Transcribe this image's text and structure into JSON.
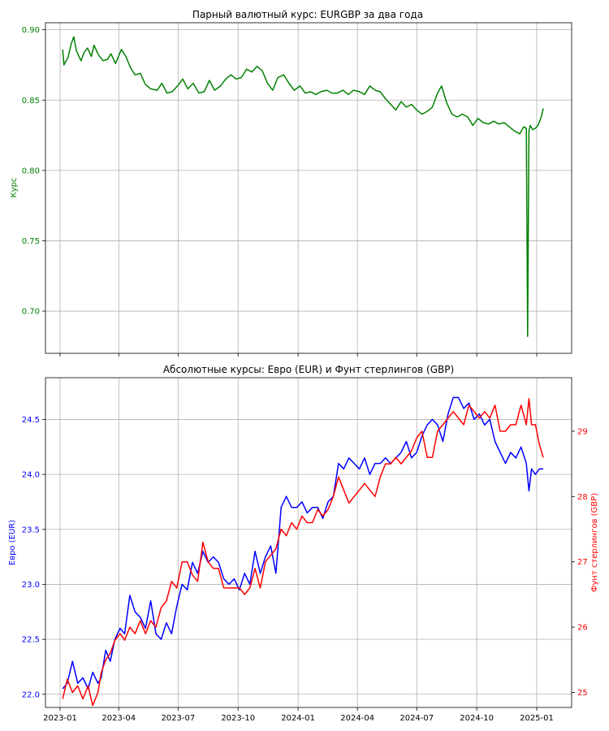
{
  "chart_data": [
    {
      "type": "line",
      "title": "Парный валютный курс: EURGBP за два года",
      "xlabel": "",
      "ylabel": "Курс",
      "ylim": [
        0.67,
        0.905
      ],
      "yticks": [
        "0.70",
        "0.75",
        "0.80",
        "0.85",
        "0.90"
      ],
      "grid": true,
      "colors": {
        "series": "#008000",
        "label": "#008000"
      },
      "series": [
        {
          "color": "#008000",
          "x": [
            "2023-01-05",
            "2023-01-07",
            "2023-01-09",
            "2023-01-13",
            "2023-01-18",
            "2023-01-22",
            "2023-01-26",
            "2023-02-02",
            "2023-02-07",
            "2023-02-12",
            "2023-02-18",
            "2023-02-22",
            "2023-03-01",
            "2023-03-08",
            "2023-03-15",
            "2023-03-20",
            "2023-03-27",
            "2023-04-05",
            "2023-04-12",
            "2023-04-19",
            "2023-04-26",
            "2023-05-04",
            "2023-05-12",
            "2023-05-20",
            "2023-05-30",
            "2023-06-06",
            "2023-06-14",
            "2023-06-22",
            "2023-06-30",
            "2023-07-08",
            "2023-07-16",
            "2023-07-24",
            "2023-08-02",
            "2023-08-10",
            "2023-08-18",
            "2023-08-26",
            "2023-09-04",
            "2023-09-12",
            "2023-09-20",
            "2023-09-28",
            "2023-10-06",
            "2023-10-14",
            "2023-10-22",
            "2023-10-30",
            "2023-11-07",
            "2023-11-15",
            "2023-11-23",
            "2023-12-01",
            "2023-12-10",
            "2023-12-18",
            "2023-12-26",
            "2024-01-04",
            "2024-01-12",
            "2024-01-20",
            "2024-01-28",
            "2024-02-05",
            "2024-02-14",
            "2024-02-22",
            "2024-03-01",
            "2024-03-10",
            "2024-03-18",
            "2024-03-26",
            "2024-04-04",
            "2024-04-12",
            "2024-04-20",
            "2024-04-28",
            "2024-05-06",
            "2024-05-14",
            "2024-05-22",
            "2024-05-30",
            "2024-06-07",
            "2024-06-15",
            "2024-06-23",
            "2024-07-01",
            "2024-07-09",
            "2024-07-17",
            "2024-07-25",
            "2024-08-02",
            "2024-08-08",
            "2024-08-16",
            "2024-08-24",
            "2024-09-01",
            "2024-09-09",
            "2024-09-17",
            "2024-09-25",
            "2024-10-03",
            "2024-10-11",
            "2024-10-19",
            "2024-10-27",
            "2024-11-04",
            "2024-11-12",
            "2024-11-20",
            "2024-11-28",
            "2024-12-06",
            "2024-12-12",
            "2024-12-16",
            "2024-12-18",
            "2024-12-20",
            "2024-12-22",
            "2024-12-26",
            "2024-12-30",
            "2025-01-03",
            "2025-01-08",
            "2025-01-11"
          ],
          "y": [
            0.886,
            0.875,
            0.877,
            0.88,
            0.89,
            0.895,
            0.885,
            0.878,
            0.884,
            0.887,
            0.881,
            0.889,
            0.882,
            0.878,
            0.879,
            0.883,
            0.876,
            0.886,
            0.881,
            0.873,
            0.868,
            0.869,
            0.861,
            0.858,
            0.857,
            0.862,
            0.855,
            0.856,
            0.86,
            0.865,
            0.858,
            0.862,
            0.855,
            0.856,
            0.864,
            0.857,
            0.86,
            0.865,
            0.868,
            0.865,
            0.866,
            0.872,
            0.87,
            0.874,
            0.871,
            0.862,
            0.857,
            0.866,
            0.868,
            0.862,
            0.857,
            0.86,
            0.855,
            0.856,
            0.854,
            0.856,
            0.857,
            0.855,
            0.855,
            0.857,
            0.854,
            0.857,
            0.856,
            0.854,
            0.86,
            0.857,
            0.856,
            0.851,
            0.847,
            0.843,
            0.849,
            0.845,
            0.847,
            0.843,
            0.84,
            0.842,
            0.845,
            0.855,
            0.86,
            0.848,
            0.84,
            0.838,
            0.84,
            0.838,
            0.832,
            0.837,
            0.834,
            0.833,
            0.835,
            0.833,
            0.834,
            0.831,
            0.828,
            0.826,
            0.831,
            0.83,
            0.682,
            0.828,
            0.832,
            0.829,
            0.83,
            0.832,
            0.838,
            0.844
          ]
        }
      ]
    },
    {
      "type": "line",
      "title": "Абсолютные курсы: Евро (EUR) и Фунт стерлингов (GBP)",
      "xlabel": "",
      "ylabel": "Евро (EUR)",
      "ylabel_right": "Фунт стерлингов (GBP)",
      "ylim": [
        21.88,
        24.88
      ],
      "ylim_right": [
        24.77,
        29.82
      ],
      "yticks": [
        "22.0",
        "22.5",
        "23.0",
        "23.5",
        "24.0",
        "24.5"
      ],
      "yticks_right": [
        "25",
        "26",
        "27",
        "28",
        "29"
      ],
      "xticks": [
        "2023-01",
        "2023-04",
        "2023-07",
        "2023-10",
        "2024-01",
        "2024-04",
        "2024-07",
        "2024-10",
        "2025-01"
      ],
      "grid": true,
      "colors": {
        "eur": "#0000ff",
        "gbp": "#ff0000"
      },
      "series": [
        {
          "color": "#0000ff",
          "axis": "left",
          "x": [
            "2023-01-05",
            "2023-01-12",
            "2023-01-20",
            "2023-01-28",
            "2023-02-05",
            "2023-02-13",
            "2023-02-20",
            "2023-02-28",
            "2023-03-05",
            "2023-03-12",
            "2023-03-19",
            "2023-03-26",
            "2023-04-03",
            "2023-04-10",
            "2023-04-18",
            "2023-04-26",
            "2023-05-04",
            "2023-05-12",
            "2023-05-20",
            "2023-05-28",
            "2023-06-05",
            "2023-06-13",
            "2023-06-21",
            "2023-06-29",
            "2023-07-07",
            "2023-07-15",
            "2023-07-23",
            "2023-07-31",
            "2023-08-08",
            "2023-08-16",
            "2023-08-24",
            "2023-09-01",
            "2023-09-09",
            "2023-09-17",
            "2023-09-25",
            "2023-10-03",
            "2023-10-11",
            "2023-10-19",
            "2023-10-27",
            "2023-11-04",
            "2023-11-12",
            "2023-11-20",
            "2023-11-28",
            "2023-12-06",
            "2023-12-14",
            "2023-12-22",
            "2023-12-30",
            "2024-01-07",
            "2024-01-15",
            "2024-01-23",
            "2024-01-31",
            "2024-02-08",
            "2024-02-16",
            "2024-02-24",
            "2024-03-03",
            "2024-03-11",
            "2024-03-19",
            "2024-03-27",
            "2024-04-04",
            "2024-04-12",
            "2024-04-20",
            "2024-04-28",
            "2024-05-06",
            "2024-05-14",
            "2024-05-22",
            "2024-05-30",
            "2024-06-07",
            "2024-06-15",
            "2024-06-23",
            "2024-07-01",
            "2024-07-09",
            "2024-07-17",
            "2024-07-25",
            "2024-08-02",
            "2024-08-10",
            "2024-08-18",
            "2024-08-26",
            "2024-09-03",
            "2024-09-11",
            "2024-09-19",
            "2024-09-27",
            "2024-10-05",
            "2024-10-13",
            "2024-10-21",
            "2024-10-29",
            "2024-11-06",
            "2024-11-14",
            "2024-11-22",
            "2024-11-30",
            "2024-12-08",
            "2024-12-16",
            "2024-12-20",
            "2024-12-24",
            "2024-12-30",
            "2025-01-05",
            "2025-01-11"
          ],
          "y": [
            22.05,
            22.1,
            22.3,
            22.1,
            22.15,
            22.05,
            22.2,
            22.1,
            22.15,
            22.4,
            22.3,
            22.5,
            22.6,
            22.55,
            22.9,
            22.75,
            22.7,
            22.6,
            22.85,
            22.55,
            22.5,
            22.65,
            22.55,
            22.8,
            23.0,
            22.95,
            23.2,
            23.1,
            23.3,
            23.2,
            23.25,
            23.2,
            23.05,
            23.0,
            23.05,
            22.95,
            23.1,
            23.0,
            23.3,
            23.1,
            23.25,
            23.35,
            23.1,
            23.7,
            23.8,
            23.7,
            23.7,
            23.75,
            23.65,
            23.7,
            23.7,
            23.6,
            23.75,
            23.8,
            24.1,
            24.05,
            24.15,
            24.1,
            24.05,
            24.15,
            24.0,
            24.1,
            24.1,
            24.15,
            24.1,
            24.15,
            24.2,
            24.3,
            24.15,
            24.2,
            24.35,
            24.45,
            24.5,
            24.45,
            24.3,
            24.55,
            24.7,
            24.7,
            24.6,
            24.65,
            24.5,
            24.55,
            24.45,
            24.5,
            24.3,
            24.2,
            24.1,
            24.2,
            24.15,
            24.25,
            24.1,
            23.85,
            24.05,
            24.0,
            24.05,
            24.05
          ]
        },
        {
          "color": "#ff0000",
          "axis": "right",
          "x": [
            "2023-01-05",
            "2023-01-12",
            "2023-01-20",
            "2023-01-28",
            "2023-02-05",
            "2023-02-13",
            "2023-02-20",
            "2023-02-28",
            "2023-03-05",
            "2023-03-12",
            "2023-03-19",
            "2023-03-26",
            "2023-04-03",
            "2023-04-10",
            "2023-04-18",
            "2023-04-26",
            "2023-05-04",
            "2023-05-12",
            "2023-05-20",
            "2023-05-28",
            "2023-06-05",
            "2023-06-13",
            "2023-06-21",
            "2023-06-29",
            "2023-07-07",
            "2023-07-15",
            "2023-07-23",
            "2023-07-31",
            "2023-08-08",
            "2023-08-16",
            "2023-08-24",
            "2023-09-01",
            "2023-09-09",
            "2023-09-17",
            "2023-09-25",
            "2023-10-03",
            "2023-10-11",
            "2023-10-19",
            "2023-10-27",
            "2023-11-04",
            "2023-11-12",
            "2023-11-20",
            "2023-11-28",
            "2023-12-06",
            "2023-12-14",
            "2023-12-22",
            "2023-12-30",
            "2024-01-07",
            "2024-01-15",
            "2024-01-23",
            "2024-01-31",
            "2024-02-08",
            "2024-02-16",
            "2024-02-24",
            "2024-03-03",
            "2024-03-11",
            "2024-03-19",
            "2024-03-27",
            "2024-04-04",
            "2024-04-12",
            "2024-04-20",
            "2024-04-28",
            "2024-05-06",
            "2024-05-14",
            "2024-05-22",
            "2024-05-30",
            "2024-06-07",
            "2024-06-15",
            "2024-06-23",
            "2024-07-01",
            "2024-07-09",
            "2024-07-17",
            "2024-07-25",
            "2024-08-02",
            "2024-08-10",
            "2024-08-18",
            "2024-08-26",
            "2024-09-03",
            "2024-09-11",
            "2024-09-19",
            "2024-09-27",
            "2024-10-05",
            "2024-10-13",
            "2024-10-21",
            "2024-10-29",
            "2024-11-06",
            "2024-11-14",
            "2024-11-22",
            "2024-11-30",
            "2024-12-08",
            "2024-12-16",
            "2024-12-20",
            "2024-12-24",
            "2024-12-30",
            "2025-01-05",
            "2025-01-11"
          ],
          "y": [
            24.9,
            25.2,
            25.0,
            25.1,
            24.9,
            25.1,
            24.8,
            25.0,
            25.3,
            25.5,
            25.6,
            25.8,
            25.9,
            25.8,
            26.0,
            25.9,
            26.1,
            25.9,
            26.1,
            26.0,
            26.3,
            26.4,
            26.7,
            26.6,
            27.0,
            27.0,
            26.8,
            26.7,
            27.3,
            27.0,
            26.9,
            26.9,
            26.6,
            26.6,
            26.6,
            26.6,
            26.5,
            26.6,
            26.9,
            26.6,
            27.0,
            27.1,
            27.2,
            27.5,
            27.4,
            27.6,
            27.5,
            27.7,
            27.6,
            27.6,
            27.8,
            27.7,
            27.8,
            28.0,
            28.3,
            28.1,
            27.9,
            28.0,
            28.1,
            28.2,
            28.1,
            28.0,
            28.3,
            28.5,
            28.5,
            28.6,
            28.5,
            28.6,
            28.7,
            28.9,
            29.0,
            28.6,
            28.6,
            29.0,
            29.1,
            29.2,
            29.3,
            29.2,
            29.1,
            29.4,
            29.3,
            29.2,
            29.3,
            29.2,
            29.4,
            29.0,
            29.0,
            29.1,
            29.1,
            29.4,
            29.1,
            29.5,
            29.1,
            29.1,
            28.8,
            28.6
          ]
        }
      ]
    }
  ]
}
